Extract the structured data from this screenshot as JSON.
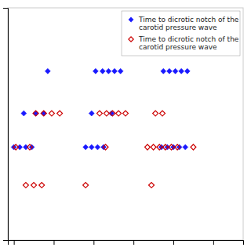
{
  "chart_data": {
    "type": "scatter",
    "legend": "upper right",
    "tick_labels": false,
    "xlim": [
      -0.3,
      11.5
    ],
    "ylim": [
      -0.5,
      5.0
    ],
    "xticks": [
      0,
      2,
      4,
      6,
      8,
      10
    ],
    "yticks": [],
    "series": [
      {
        "name": "Time to dicrotic notch of the\ncarotid pressure wave",
        "color": "#1a1aff",
        "marker": "diamond",
        "x": [
          1.7,
          0.5,
          1.1,
          1.5,
          0.0,
          0.3,
          0.6,
          0.9,
          4.1,
          4.45,
          4.75,
          5.05,
          5.35,
          3.9,
          4.9,
          3.6,
          3.9,
          4.2,
          4.5,
          7.5,
          7.8,
          8.1,
          8.4,
          8.7,
          7.4,
          7.7,
          8.0,
          8.3,
          8.6
        ],
        "values": [
          3.5,
          2.5,
          2.5,
          2.5,
          1.7,
          1.7,
          1.7,
          1.7,
          3.5,
          3.5,
          3.5,
          3.5,
          3.5,
          2.5,
          2.5,
          1.7,
          1.7,
          1.7,
          1.7,
          3.5,
          3.5,
          3.5,
          3.5,
          3.5,
          1.7,
          1.7,
          1.7,
          1.7,
          1.7
        ]
      },
      {
        "name": "Time to dicrotic notch of the\ncarotid pressure wave",
        "color": "#cc0000",
        "marker": "open-diamond",
        "x": [
          1.1,
          1.5,
          1.9,
          2.3,
          0.1,
          0.8,
          0.6,
          1.0,
          1.4,
          4.3,
          4.65,
          4.95,
          5.25,
          5.6,
          4.6,
          3.6,
          7.1,
          7.45,
          6.7,
          7.0,
          7.3,
          7.6,
          7.9,
          8.2,
          9.0,
          6.9
        ],
        "values": [
          2.5,
          2.5,
          2.5,
          2.5,
          1.7,
          1.7,
          0.8,
          0.8,
          0.8,
          2.5,
          2.5,
          2.5,
          2.5,
          2.5,
          1.7,
          0.8,
          2.5,
          2.5,
          1.7,
          1.7,
          1.7,
          1.7,
          1.7,
          1.7,
          1.7,
          0.8
        ]
      }
    ]
  }
}
